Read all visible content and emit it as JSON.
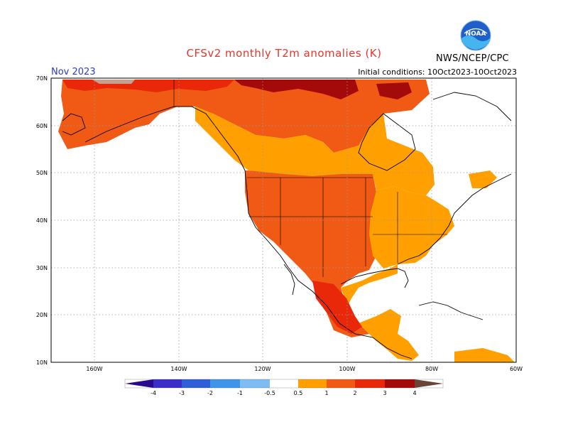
{
  "header": {
    "title": "CFSv2 monthly T2m anomalies (K)",
    "month": "Nov 2023",
    "initial_conditions": "Initial conditions: 10Oct2023-10Oct2023",
    "credit": "NWS/NCEP/CPC",
    "logo_text": "NOAA"
  },
  "axes": {
    "lon_labels": [
      "160W",
      "140W",
      "120W",
      "100W",
      "80W",
      "60W"
    ],
    "lat_labels": [
      "70N",
      "60N",
      "50N",
      "40N",
      "30N",
      "20N",
      "10N"
    ],
    "lon_range": [
      -170,
      -60
    ],
    "lat_range": [
      10,
      70
    ],
    "grid": "dotted"
  },
  "legend": {
    "labels": [
      "-4",
      "-3",
      "-2",
      "-1",
      "-0.5",
      "0.5",
      "1",
      "2",
      "3",
      "4"
    ],
    "colors": {
      "lt_-4": "#2a0a8c",
      "-4_-3": "#3a2ec8",
      "-3_-2": "#2e5fd8",
      "-2_-1": "#3f95e8",
      "-1_-0.5": "#7fbcf2",
      "-0.5_0.5": "#ffffff",
      "0.5_1": "#ffa000",
      "1_2": "#f05a14",
      "2_3": "#e82808",
      "3_4": "#a50a0a",
      "gt_4": "#c8a090",
      "gt_4_arrow": "#6b4438"
    }
  },
  "regions": [
    {
      "name": "Canadian Arctic / Alaska",
      "anomaly_class": "1-2 K"
    },
    {
      "name": "Northern Canada",
      "anomaly_class": "2-3 K"
    },
    {
      "name": "Central Canada",
      "anomaly_class": "0.5-1 K"
    },
    {
      "name": "Western and central United States",
      "anomaly_class": "1-2 K"
    },
    {
      "name": "Eastern United States",
      "anomaly_class": "0.5-1 K"
    },
    {
      "name": "Mexico",
      "anomaly_class": "1-2 K"
    },
    {
      "name": "Hudson Bay and North Atlantic",
      "anomaly_class": "-0.5-0.5 K"
    }
  ]
}
